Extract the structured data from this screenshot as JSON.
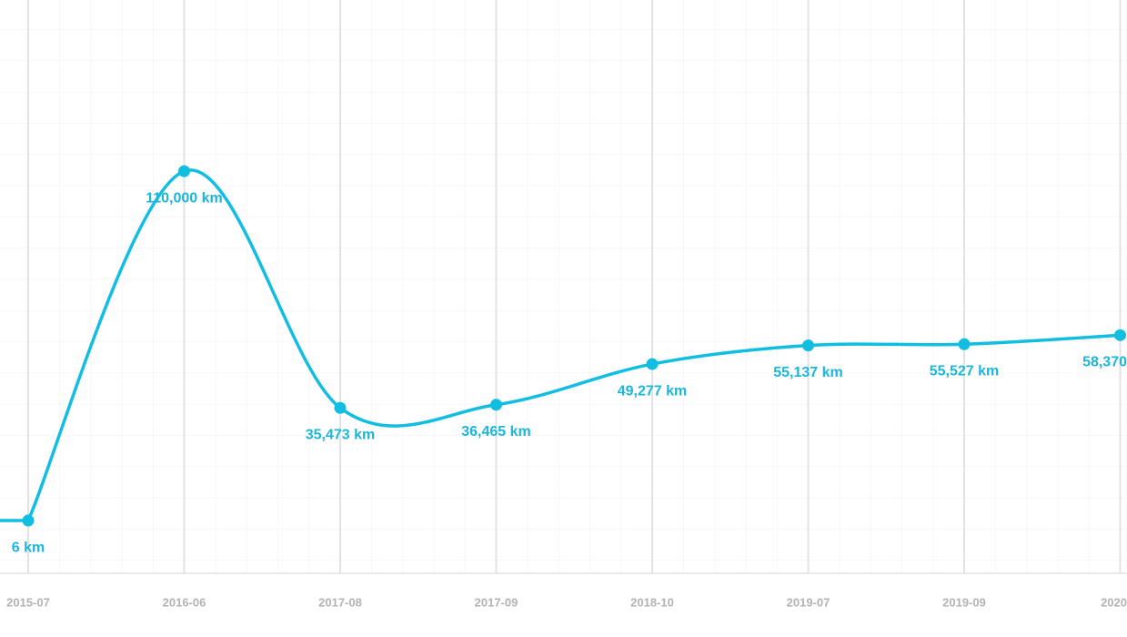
{
  "chart_data": {
    "type": "line",
    "categories": [
      "2015-07",
      "2016-06",
      "2017-08",
      "2017-09",
      "2018-10",
      "2019-07",
      "2019-09",
      "2020"
    ],
    "values": [
      6,
      110000,
      35473,
      36465,
      49277,
      55137,
      55527,
      58370
    ],
    "value_labels": [
      "6 km",
      "110,000 km",
      "35,473 km",
      "36,465 km",
      "49,277 km",
      "55,137 km",
      "55,527 km",
      "58,370"
    ],
    "color": "#12bde2",
    "ylim": [
      -16600,
      163900
    ],
    "grid": true
  }
}
